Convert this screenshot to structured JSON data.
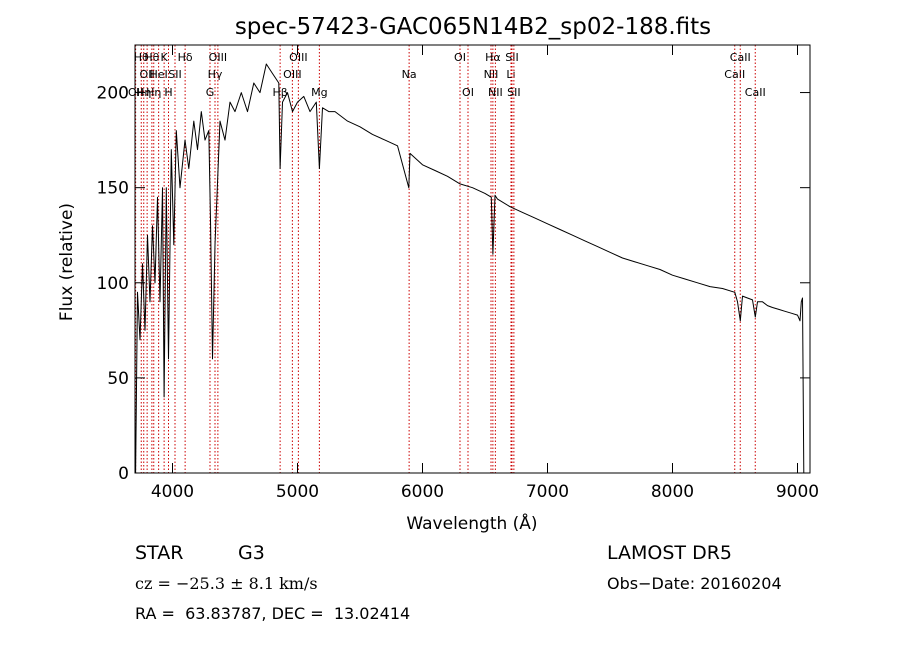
{
  "chart_data": {
    "type": "line",
    "title": "spec-57423-GAC065N14B2_sp02-188.fits",
    "xlabel": "Wavelength (Å)",
    "ylabel": "Flux (relative)",
    "xlim": [
      3700,
      9100
    ],
    "ylim": [
      0,
      225
    ],
    "x_ticks": [
      4000,
      5000,
      6000,
      7000,
      8000,
      9000
    ],
    "y_ticks": [
      0,
      50,
      100,
      150,
      200
    ],
    "grid": false,
    "line_color": "#000000",
    "marker_color": "#cc0000",
    "series": [
      {
        "x": [
          3705,
          3720,
          3740,
          3760,
          3780,
          3800,
          3820,
          3840,
          3860,
          3880,
          3900,
          3920,
          3933,
          3950,
          3968,
          3990,
          4010,
          4030,
          4060,
          4100,
          4130,
          4170,
          4200,
          4230,
          4260,
          4290,
          4305,
          4320,
          4340,
          4380,
          4420,
          4460,
          4500,
          4550,
          4600,
          4650,
          4700,
          4750,
          4800,
          4850,
          4861,
          4880,
          4920,
          4960,
          5000,
          5050,
          5100,
          5150,
          5175,
          5200,
          5250,
          5300,
          5400,
          5500,
          5600,
          5700,
          5800,
          5890,
          5900,
          6000,
          6100,
          6200,
          6300,
          6400,
          6500,
          6550,
          6563,
          6580,
          6600,
          6700,
          6800,
          6900,
          7000,
          7100,
          7200,
          7300,
          7400,
          7500,
          7600,
          7700,
          7800,
          7900,
          8000,
          8100,
          8200,
          8300,
          8400,
          8498,
          8520,
          8542,
          8560,
          8600,
          8640,
          8662,
          8680,
          8720,
          8760,
          8800,
          8850,
          8900,
          8950,
          9000,
          9020,
          9030,
          9040,
          9050
        ],
        "y": [
          0,
          95,
          70,
          110,
          75,
          125,
          90,
          130,
          100,
          145,
          90,
          150,
          40,
          150,
          60,
          170,
          120,
          180,
          150,
          175,
          160,
          185,
          170,
          190,
          175,
          180,
          130,
          60,
          120,
          185,
          175,
          195,
          190,
          200,
          190,
          205,
          200,
          215,
          210,
          205,
          160,
          195,
          200,
          190,
          195,
          198,
          190,
          195,
          160,
          192,
          190,
          190,
          185,
          182,
          178,
          175,
          172,
          150,
          168,
          162,
          159,
          156,
          152,
          150,
          147,
          145,
          115,
          146,
          144,
          140,
          137,
          134,
          131,
          128,
          125,
          122,
          119,
          116,
          113,
          111,
          109,
          107,
          104,
          102,
          100,
          98,
          97,
          95,
          90,
          80,
          93,
          92,
          91,
          82,
          90,
          90,
          88,
          87,
          86,
          85,
          84,
          83,
          80,
          90,
          92,
          0
        ]
      }
    ],
    "line_markers": [
      {
        "w": 3705,
        "row": 3,
        "label": "OII"
      },
      {
        "w": 3750,
        "row": 1,
        "label": "Hθ"
      },
      {
        "w": 3770,
        "row": 3,
        "label": "Hη"
      },
      {
        "w": 3797,
        "row": 2,
        "label": "OII"
      },
      {
        "w": 3835,
        "row": 1,
        "label": "Hθ"
      },
      {
        "w": 3850,
        "row": 3,
        "label": "Hη"
      },
      {
        "w": 3889,
        "row": 2,
        "label": "HeI"
      },
      {
        "w": 3933,
        "row": 1,
        "label": "K"
      },
      {
        "w": 3968,
        "row": 3,
        "label": "H"
      },
      {
        "w": 4020,
        "row": 2,
        "label": "SII"
      },
      {
        "w": 4101,
        "row": 1,
        "label": "Hδ"
      },
      {
        "w": 4300,
        "row": 3,
        "label": "G"
      },
      {
        "w": 4340,
        "row": 2,
        "label": "Hγ"
      },
      {
        "w": 4363,
        "row": 1,
        "label": "OIII"
      },
      {
        "w": 4861,
        "row": 3,
        "label": "Hβ"
      },
      {
        "w": 4959,
        "row": 2,
        "label": "OIII"
      },
      {
        "w": 5007,
        "row": 1,
        "label": "OIII"
      },
      {
        "w": 5175,
        "row": 3,
        "label": "Mg"
      },
      {
        "w": 5893,
        "row": 2,
        "label": "Na"
      },
      {
        "w": 6300,
        "row": 1,
        "label": "OI"
      },
      {
        "w": 6364,
        "row": 3,
        "label": "OI"
      },
      {
        "w": 6548,
        "row": 2,
        "label": "NII"
      },
      {
        "w": 6563,
        "row": 1,
        "label": "Hα"
      },
      {
        "w": 6583,
        "row": 3,
        "label": "NII"
      },
      {
        "w": 6708,
        "row": 2,
        "label": "Li"
      },
      {
        "w": 6716,
        "row": 1,
        "label": "SII"
      },
      {
        "w": 6731,
        "row": 3,
        "label": "SII"
      },
      {
        "w": 8498,
        "row": 2,
        "label": "CaII"
      },
      {
        "w": 8542,
        "row": 1,
        "label": "CaII"
      },
      {
        "w": 8662,
        "row": 3,
        "label": "CaII"
      }
    ]
  },
  "info": {
    "class_label": "STAR",
    "subclass": "G3",
    "survey": "LAMOST DR5",
    "cz": "cz = −25.3 ± 8.1 km/s",
    "obs_date": "Obs−Date: 20160204",
    "coords": "RA =  63.83787, DEC =  13.02414"
  }
}
